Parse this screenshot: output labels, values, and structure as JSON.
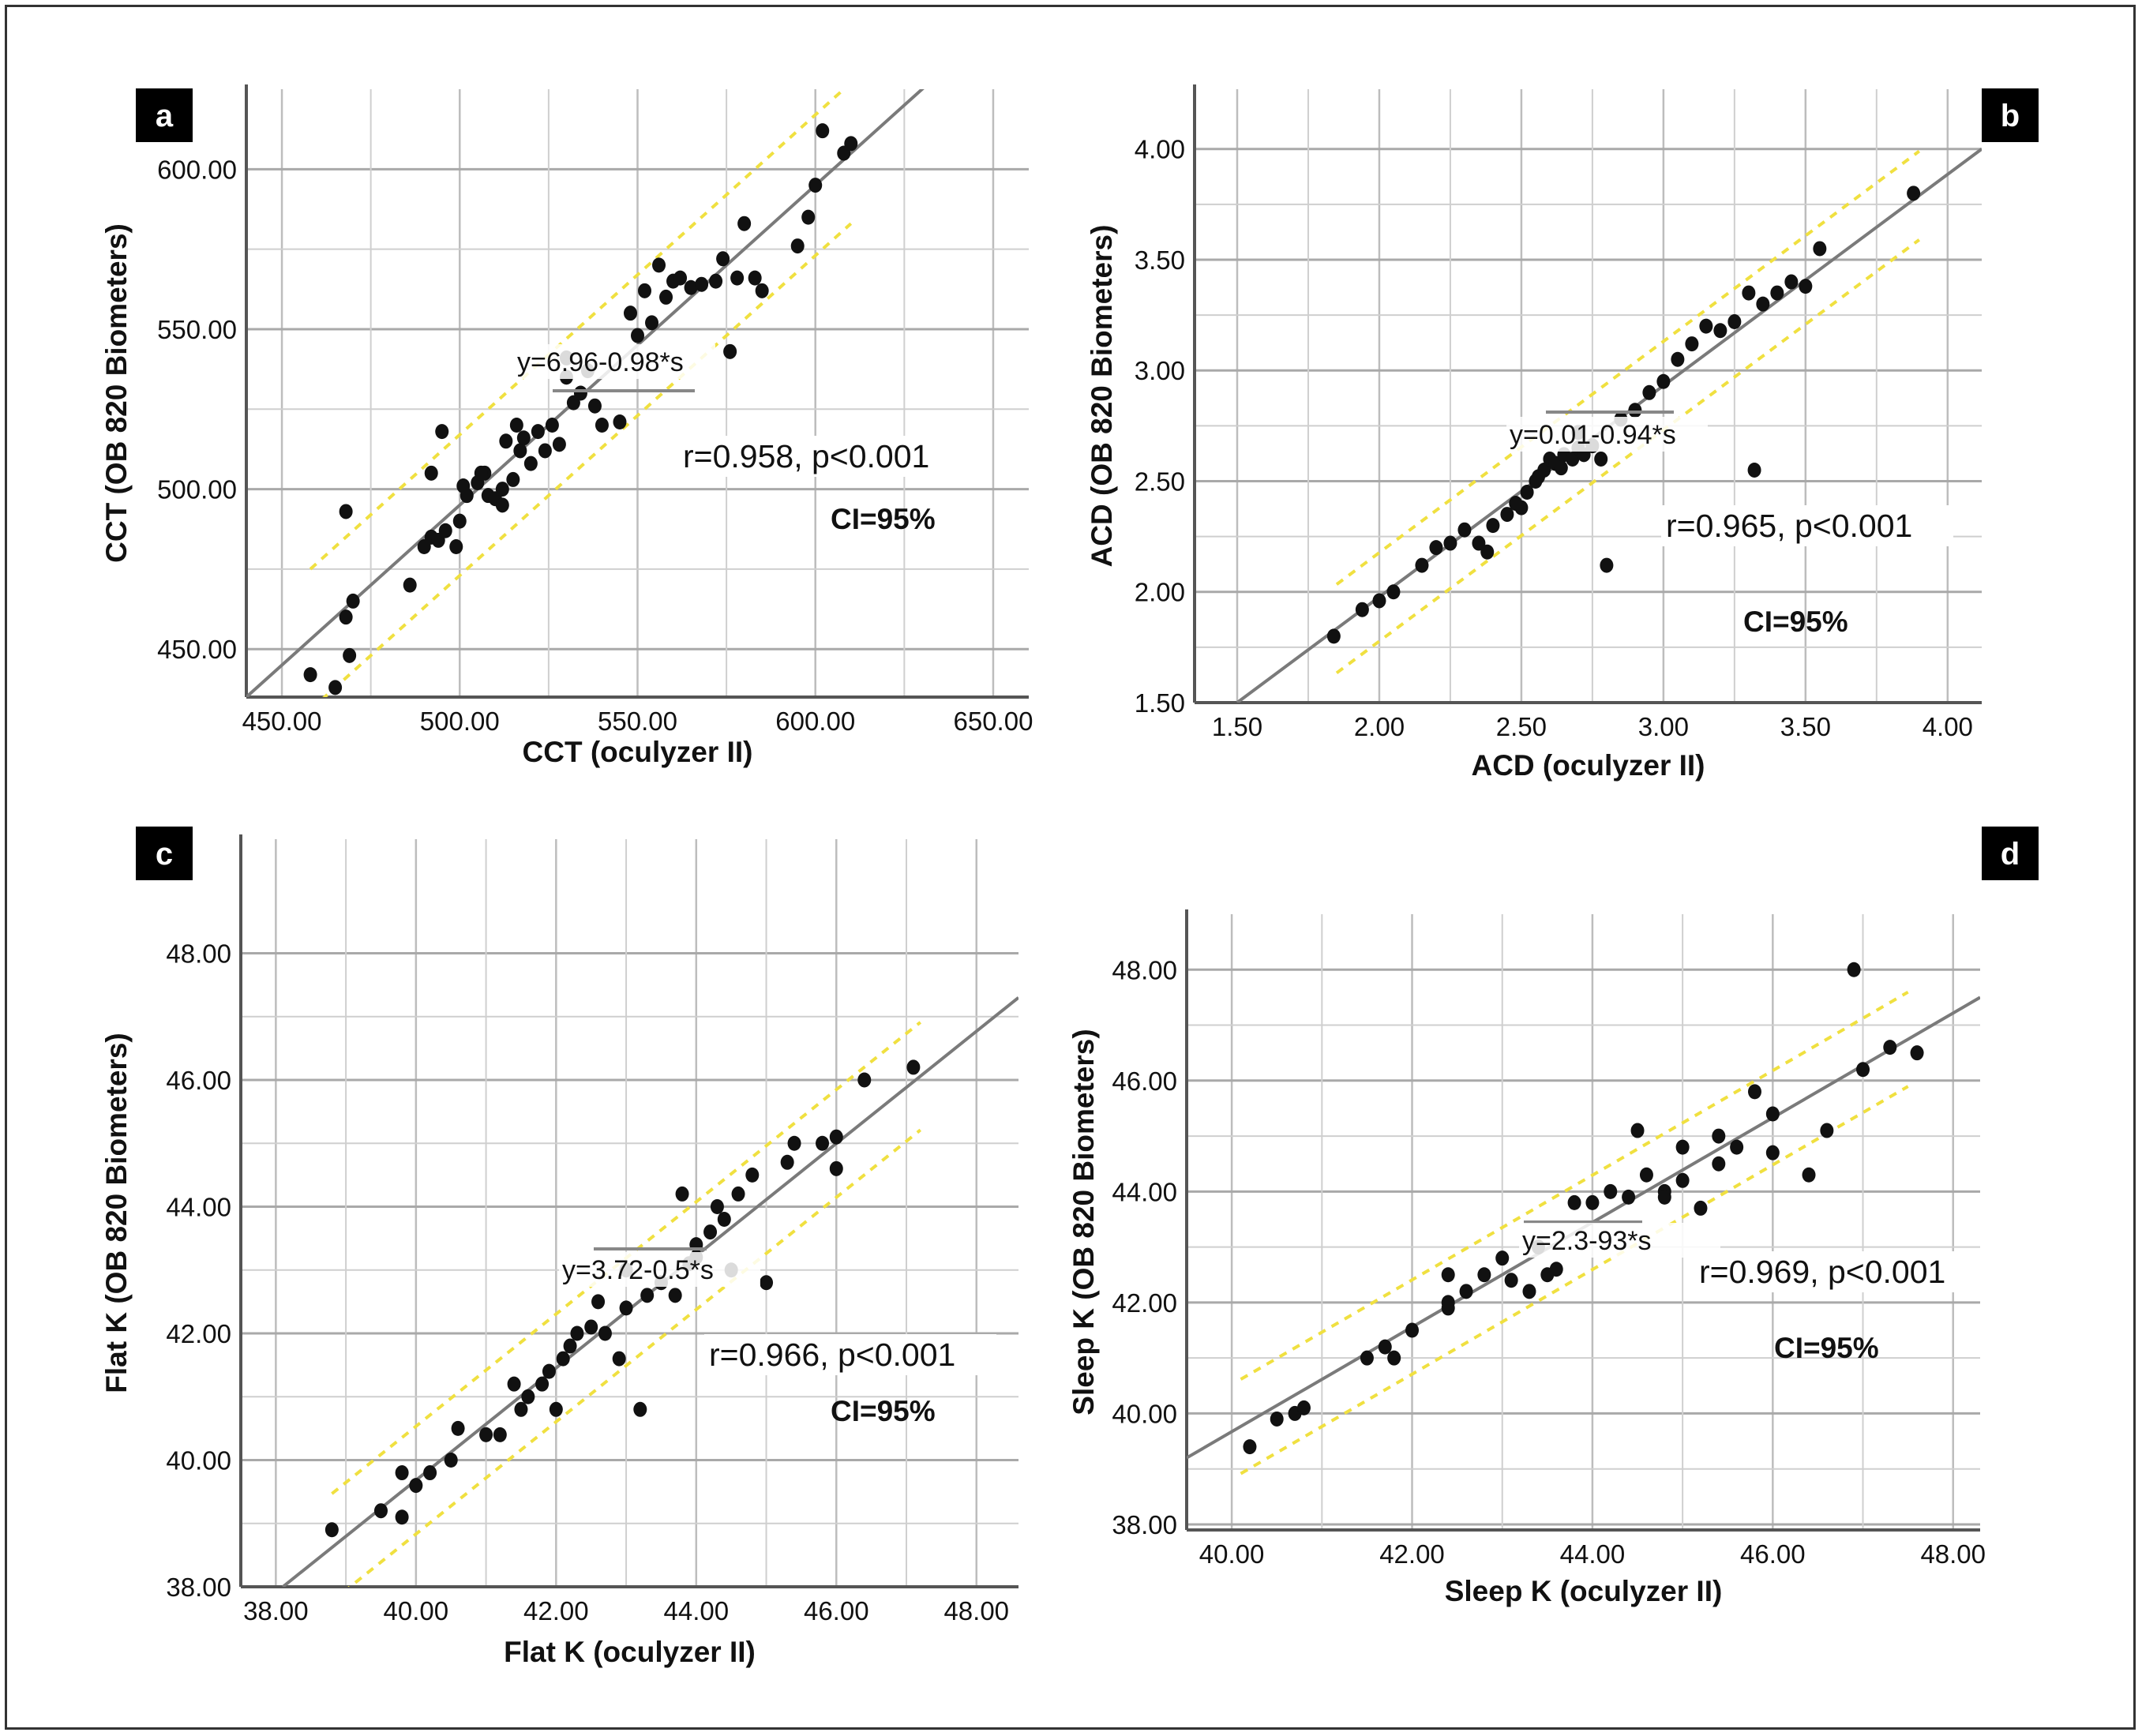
{
  "chart_data": [
    {
      "type": "scatter",
      "panel_label": "a",
      "xlabel": "CCT (oculyzer II)",
      "ylabel": "CCT (OB 820 Biometers)",
      "xlim": [
        440,
        660
      ],
      "ylim": [
        435,
        625
      ],
      "xticks": [
        450,
        500,
        550,
        600,
        650
      ],
      "yticks": [
        450,
        500,
        550,
        600
      ],
      "xtick_labels": [
        "450.00",
        "500.00",
        "550.00",
        "600.00",
        "650.00"
      ],
      "ytick_labels": [
        "450.00",
        "500.00",
        "550.00",
        "600.00"
      ],
      "fit_label": "y=6.96-0.98*s",
      "stat_label": "r=0.958, p<0.001",
      "ci_label": "CI=95%",
      "fit_line": [
        [
          440,
          435
        ],
        [
          650,
          645
        ]
      ],
      "ci_offset": 22,
      "ci_x_range": [
        458,
        610
      ],
      "points": [
        [
          458,
          442
        ],
        [
          465,
          438
        ],
        [
          469,
          448
        ],
        [
          468,
          460
        ],
        [
          470,
          465
        ],
        [
          468,
          493
        ],
        [
          486,
          470
        ],
        [
          490,
          482
        ],
        [
          492,
          485
        ],
        [
          494,
          484
        ],
        [
          496,
          487
        ],
        [
          499,
          482
        ],
        [
          500,
          490
        ],
        [
          502,
          498
        ],
        [
          501,
          501
        ],
        [
          505,
          502
        ],
        [
          507,
          505
        ],
        [
          508,
          498
        ],
        [
          510,
          497
        ],
        [
          512,
          495
        ],
        [
          513,
          515
        ],
        [
          515,
          503
        ],
        [
          517,
          512
        ],
        [
          516,
          520
        ],
        [
          518,
          516
        ],
        [
          520,
          508
        ],
        [
          522,
          518
        ],
        [
          524,
          512
        ],
        [
          526,
          520
        ],
        [
          528,
          514
        ],
        [
          530,
          535
        ],
        [
          532,
          527
        ],
        [
          534,
          530
        ],
        [
          536,
          537
        ],
        [
          538,
          526
        ],
        [
          540,
          520
        ],
        [
          530,
          541
        ],
        [
          545,
          521
        ],
        [
          548,
          555
        ],
        [
          550,
          548
        ],
        [
          552,
          562
        ],
        [
          554,
          552
        ],
        [
          556,
          570
        ],
        [
          558,
          560
        ],
        [
          560,
          565
        ],
        [
          562,
          566
        ],
        [
          565,
          563
        ],
        [
          568,
          564
        ],
        [
          572,
          565
        ],
        [
          574,
          572
        ],
        [
          576,
          543
        ],
        [
          578,
          566
        ],
        [
          580,
          583
        ],
        [
          583,
          566
        ],
        [
          585,
          562
        ],
        [
          595,
          576
        ],
        [
          598,
          585
        ],
        [
          600,
          595
        ],
        [
          602,
          612
        ],
        [
          608,
          605
        ],
        [
          610,
          608
        ],
        [
          506,
          505
        ],
        [
          512,
          500
        ],
        [
          495,
          518
        ],
        [
          492,
          505
        ]
      ],
      "series_name": ""
    },
    {
      "type": "scatter",
      "panel_label": "b",
      "xlabel": "ACD (oculyzer II)",
      "ylabel": "ACD (OB 820 Biometers)",
      "xlim": [
        1.35,
        4.12
      ],
      "ylim": [
        1.5,
        4.27
      ],
      "xticks": [
        1.5,
        2.0,
        2.5,
        3.0,
        3.5,
        4.0
      ],
      "yticks": [
        1.5,
        2.0,
        2.5,
        3.0,
        3.5,
        4.0
      ],
      "xtick_labels": [
        "1.50",
        "2.00",
        "2.50",
        "3.00",
        "3.50",
        "4.00"
      ],
      "ytick_labels": [
        "1.50",
        "2.00",
        "2.50",
        "3.00",
        "3.50",
        "4.00"
      ],
      "fit_label": "y=0.01-0.94*s",
      "stat_label": "r=0.965, p<0.001",
      "ci_label": "CI=95%",
      "fit_line": [
        [
          1.5,
          1.5
        ],
        [
          4.12,
          4.0
        ]
      ],
      "ci_offset": 0.2,
      "ci_x_range": [
        1.85,
        3.9
      ],
      "points": [
        [
          1.84,
          1.8
        ],
        [
          1.94,
          1.92
        ],
        [
          2.0,
          1.96
        ],
        [
          2.05,
          2.0
        ],
        [
          2.15,
          2.12
        ],
        [
          2.2,
          2.2
        ],
        [
          2.25,
          2.22
        ],
        [
          2.3,
          2.28
        ],
        [
          2.35,
          2.22
        ],
        [
          2.4,
          2.3
        ],
        [
          2.38,
          2.18
        ],
        [
          2.45,
          2.35
        ],
        [
          2.5,
          2.38
        ],
        [
          2.52,
          2.45
        ],
        [
          2.55,
          2.5
        ],
        [
          2.58,
          2.55
        ],
        [
          2.6,
          2.6
        ],
        [
          2.62,
          2.58
        ],
        [
          2.65,
          2.62
        ],
        [
          2.68,
          2.6
        ],
        [
          2.7,
          2.65
        ],
        [
          2.72,
          2.62
        ],
        [
          2.75,
          2.66
        ],
        [
          2.78,
          2.6
        ],
        [
          2.8,
          2.12
        ],
        [
          2.85,
          2.78
        ],
        [
          2.9,
          2.82
        ],
        [
          2.95,
          2.9
        ],
        [
          3.0,
          2.95
        ],
        [
          3.05,
          3.05
        ],
        [
          3.1,
          3.12
        ],
        [
          3.15,
          3.2
        ],
        [
          3.2,
          3.18
        ],
        [
          3.25,
          3.22
        ],
        [
          3.3,
          3.35
        ],
        [
          3.32,
          2.55
        ],
        [
          3.35,
          3.3
        ],
        [
          3.4,
          3.35
        ],
        [
          3.45,
          3.4
        ],
        [
          3.5,
          3.38
        ],
        [
          3.55,
          3.55
        ],
        [
          3.88,
          3.8
        ],
        [
          2.48,
          2.4
        ],
        [
          2.56,
          2.52
        ],
        [
          2.64,
          2.56
        ],
        [
          2.7,
          2.72
        ]
      ],
      "series_name": ""
    },
    {
      "type": "scatter",
      "panel_label": "c",
      "xlabel": "Flat K (oculyzer II)",
      "ylabel": "Flat K (OB 820 Biometers)",
      "xlim": [
        37.5,
        48.6
      ],
      "ylim": [
        38.0,
        49.8
      ],
      "xticks": [
        38,
        40,
        42,
        44,
        46,
        48
      ],
      "yticks": [
        38,
        40,
        42,
        44,
        46,
        48
      ],
      "xtick_labels": [
        "38.00",
        "40.00",
        "42.00",
        "44.00",
        "46.00",
        "48.00"
      ],
      "ytick_labels": [
        "38.00",
        "40.00",
        "42.00",
        "44.00",
        "46.00",
        "48.00"
      ],
      "fit_label": "y=3.72-0.5*s",
      "stat_label": "r=0.966, p<0.001",
      "ci_label": "CI=95%",
      "fit_line": [
        [
          38.1,
          38.0
        ],
        [
          48.6,
          47.3
        ]
      ],
      "ci_offset": 0.85,
      "ci_x_range": [
        38.8,
        47.2
      ],
      "points": [
        [
          38.8,
          38.9
        ],
        [
          39.5,
          39.2
        ],
        [
          39.8,
          39.1
        ],
        [
          39.8,
          39.8
        ],
        [
          40.0,
          39.6
        ],
        [
          40.2,
          39.8
        ],
        [
          40.5,
          40.0
        ],
        [
          40.6,
          40.5
        ],
        [
          41.0,
          40.4
        ],
        [
          41.2,
          40.4
        ],
        [
          41.4,
          41.2
        ],
        [
          41.5,
          40.8
        ],
        [
          41.6,
          41.0
        ],
        [
          41.8,
          41.2
        ],
        [
          41.9,
          41.4
        ],
        [
          42.0,
          40.8
        ],
        [
          42.1,
          41.6
        ],
        [
          42.2,
          41.8
        ],
        [
          42.3,
          42.0
        ],
        [
          42.5,
          42.1
        ],
        [
          42.7,
          42.0
        ],
        [
          42.9,
          41.6
        ],
        [
          43.0,
          42.4
        ],
        [
          43.2,
          40.8
        ],
        [
          43.3,
          42.6
        ],
        [
          43.5,
          42.8
        ],
        [
          43.7,
          42.6
        ],
        [
          43.9,
          43.1
        ],
        [
          44.0,
          43.4
        ],
        [
          44.2,
          43.6
        ],
        [
          44.4,
          43.8
        ],
        [
          44.6,
          44.2
        ],
        [
          44.8,
          44.5
        ],
        [
          45.0,
          42.8
        ],
        [
          45.3,
          44.7
        ],
        [
          45.4,
          45.0
        ],
        [
          45.8,
          45.0
        ],
        [
          46.0,
          44.6
        ],
        [
          46.0,
          45.1
        ],
        [
          46.4,
          46.0
        ],
        [
          47.1,
          46.2
        ],
        [
          44.0,
          43.2
        ],
        [
          44.3,
          44.0
        ],
        [
          43.8,
          44.2
        ],
        [
          44.5,
          43.0
        ],
        [
          42.6,
          42.5
        ],
        [
          43.0,
          43.0
        ]
      ],
      "series_name": ""
    },
    {
      "type": "scatter",
      "panel_label": "d",
      "xlabel": "Sleep K (oculyzer II)",
      "ylabel": "Sleep K (OB 820 Biometers)",
      "xlim": [
        39.5,
        48.3
      ],
      "ylim": [
        37.9,
        49.0
      ],
      "xticks": [
        40,
        42,
        44,
        46,
        48
      ],
      "yticks": [
        38,
        40,
        42,
        44,
        46,
        48
      ],
      "xtick_labels": [
        "40.00",
        "42.00",
        "44.00",
        "46.00",
        "48.00"
      ],
      "ytick_labels": [
        "38.00",
        "40.00",
        "42.00",
        "44.00",
        "46.00",
        "48.00"
      ],
      "fit_label": "y=2.3-93*s",
      "stat_label": "r=0.969, p<0.001",
      "ci_label": "CI=95%",
      "fit_line": [
        [
          39.5,
          39.2
        ],
        [
          48.3,
          47.5
        ]
      ],
      "ci_offset": 0.85,
      "ci_x_range": [
        40.1,
        47.5
      ],
      "points": [
        [
          40.2,
          39.4
        ],
        [
          40.5,
          39.9
        ],
        [
          40.7,
          40.0
        ],
        [
          40.8,
          40.1
        ],
        [
          41.5,
          41.0
        ],
        [
          41.7,
          41.2
        ],
        [
          41.8,
          41.0
        ],
        [
          42.0,
          41.5
        ],
        [
          42.4,
          41.9
        ],
        [
          42.4,
          42.5
        ],
        [
          42.6,
          42.2
        ],
        [
          42.8,
          42.5
        ],
        [
          43.0,
          42.8
        ],
        [
          43.1,
          42.4
        ],
        [
          43.3,
          42.2
        ],
        [
          43.4,
          43.0
        ],
        [
          43.6,
          42.6
        ],
        [
          43.8,
          43.8
        ],
        [
          44.0,
          43.8
        ],
        [
          44.2,
          44.0
        ],
        [
          44.4,
          43.9
        ],
        [
          44.5,
          45.1
        ],
        [
          44.6,
          44.3
        ],
        [
          44.8,
          44.0
        ],
        [
          45.0,
          44.2
        ],
        [
          45.2,
          43.7
        ],
        [
          45.4,
          44.5
        ],
        [
          45.6,
          44.8
        ],
        [
          45.8,
          45.8
        ],
        [
          46.0,
          44.7
        ],
        [
          46.0,
          45.4
        ],
        [
          46.4,
          44.3
        ],
        [
          46.6,
          45.1
        ],
        [
          46.9,
          48.0
        ],
        [
          47.0,
          46.2
        ],
        [
          47.3,
          46.6
        ],
        [
          47.6,
          46.5
        ],
        [
          45.0,
          44.8
        ],
        [
          45.4,
          45.0
        ],
        [
          44.8,
          43.9
        ],
        [
          43.5,
          42.5
        ],
        [
          42.4,
          42.0
        ]
      ],
      "series_name": ""
    }
  ]
}
